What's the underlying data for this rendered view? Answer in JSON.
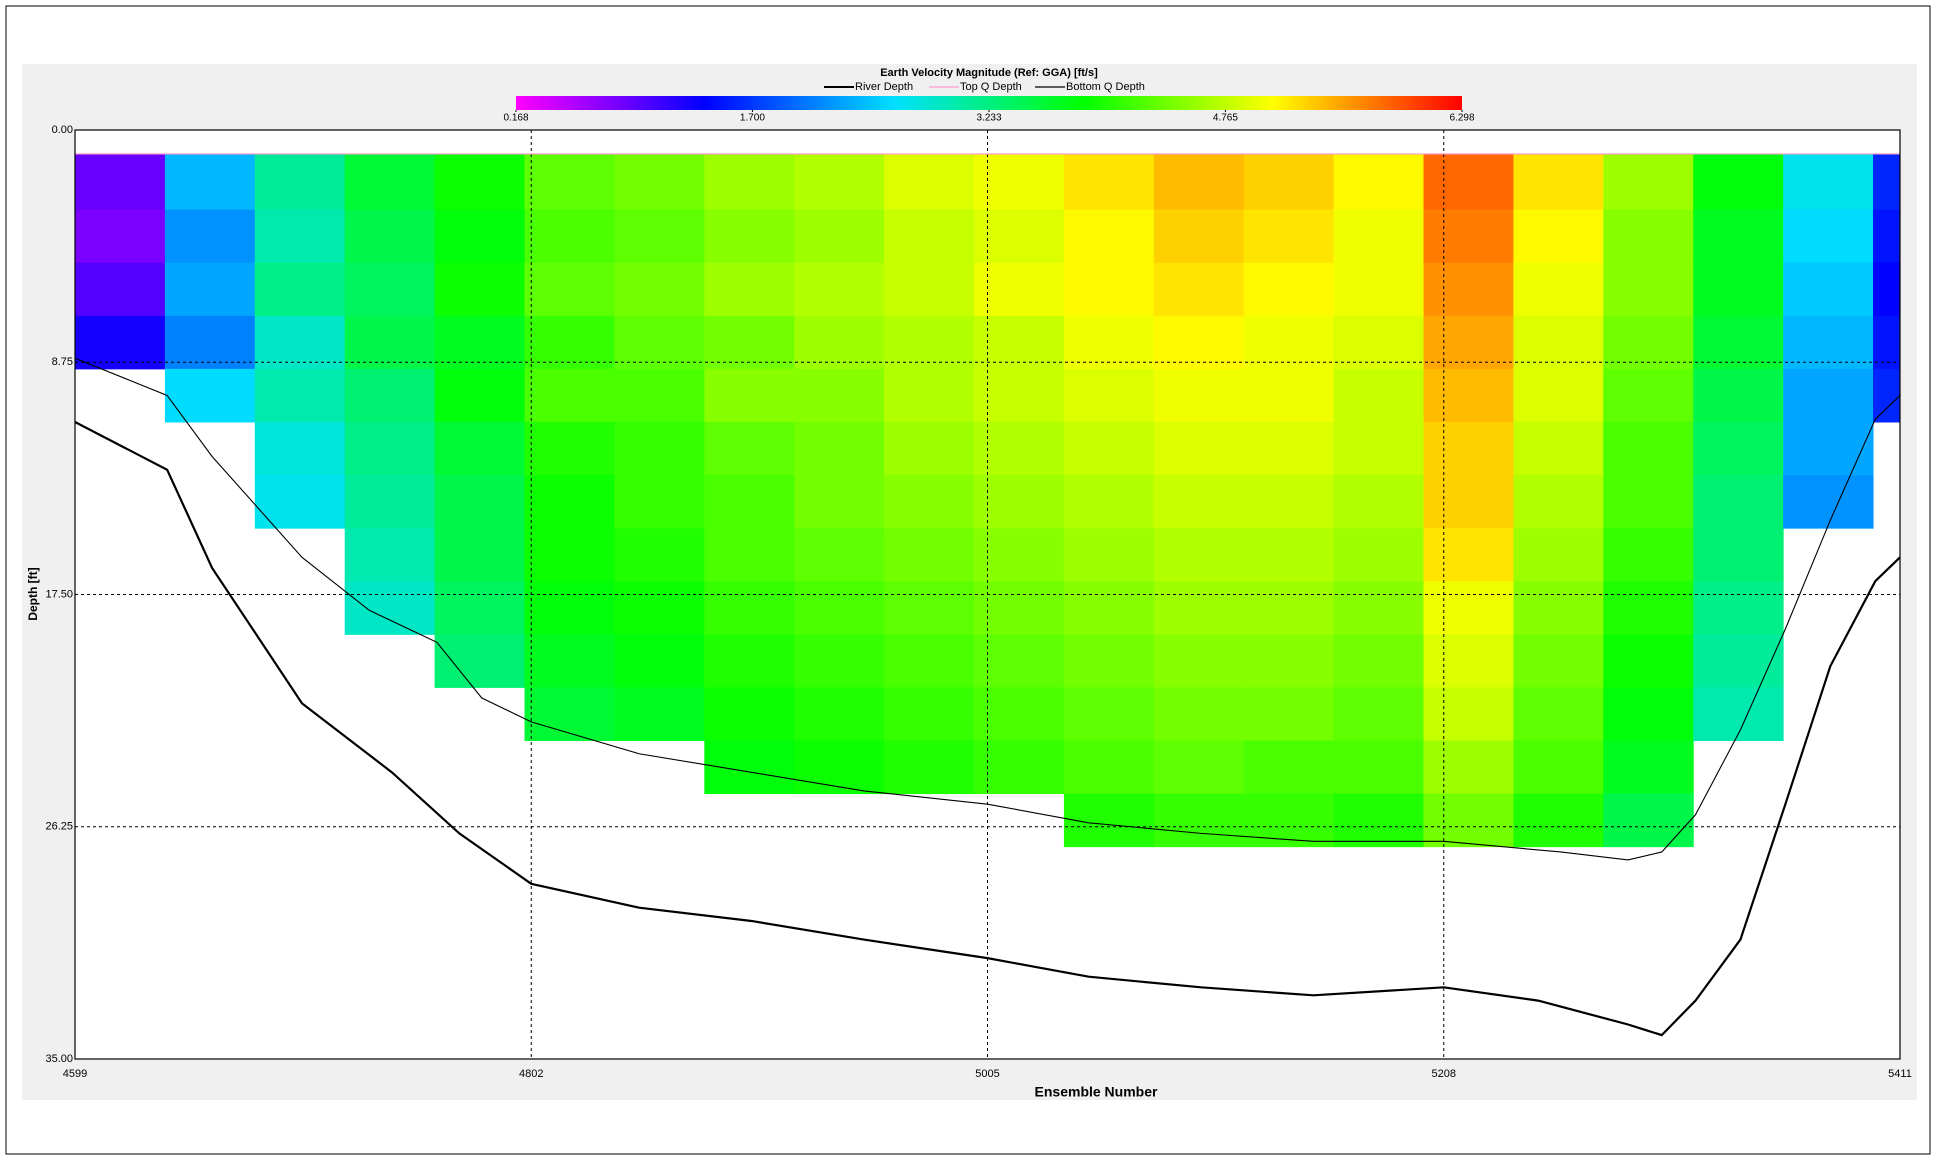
{
  "chart_data": {
    "type": "heatmap",
    "title": "Earth Velocity Magnitude (Ref: GGA) [ft/s]",
    "xlabel": "Ensemble Number",
    "ylabel": "Depth [ft]",
    "xlim": [
      4599,
      5411
    ],
    "xticks": [
      4599,
      4802,
      5005,
      5208,
      5411
    ],
    "ylim": [
      0,
      35
    ],
    "y_inverted": true,
    "yticks": [
      {
        "value": 0,
        "label": "0.00"
      },
      8.75,
      {
        "value": 17.5,
        "label": "17.50"
      },
      26.25,
      {
        "value": 35,
        "label": "35.00"
      }
    ],
    "grid": true,
    "legend": "top",
    "clim": [
      0.168,
      6.298
    ],
    "colorbar_ticks": [
      0.168,
      {
        "value": 1.7,
        "label": "1.700"
      },
      3.233,
      4.765,
      6.298
    ],
    "colormap": [
      "#ff00ff",
      "#0000ff",
      "#00e0ff",
      "#00ff00",
      "#ffff00",
      "#ff0000"
    ],
    "cells": {
      "x": [
        4599,
        4639,
        4679,
        4719,
        4759,
        4799,
        4839,
        4879,
        4919,
        4959,
        4999,
        5039,
        5079,
        5119,
        5159,
        5199,
        5239,
        5279,
        5319,
        5359,
        5399,
        5411
      ],
      "depth": [
        0.9,
        3,
        5,
        7,
        9,
        11,
        13,
        15,
        17,
        19,
        21,
        23,
        25,
        27
      ],
      "values": [
        [
          0.9,
          0.8,
          1.0,
          1.3,
          null,
          null,
          null,
          null,
          null,
          null,
          null,
          null,
          null
        ],
        [
          2.4,
          2.2,
          2.3,
          2.1,
          2.6,
          null,
          null,
          null,
          null,
          null,
          null,
          null,
          null
        ],
        [
          3.1,
          3.0,
          3.2,
          2.9,
          3.0,
          2.8,
          2.7,
          null,
          null,
          null,
          null,
          null,
          null
        ],
        [
          3.6,
          3.5,
          3.4,
          3.5,
          3.3,
          3.2,
          3.1,
          3.0,
          2.9,
          null,
          null,
          null,
          null
        ],
        [
          3.9,
          3.8,
          3.9,
          3.7,
          3.8,
          3.6,
          3.5,
          3.5,
          3.4,
          3.3,
          null,
          null,
          null
        ],
        [
          4.3,
          4.2,
          4.3,
          4.1,
          4.2,
          4.0,
          3.9,
          3.9,
          3.8,
          3.7,
          3.6,
          null,
          null
        ],
        [
          4.4,
          4.3,
          4.4,
          4.3,
          4.2,
          4.1,
          4.1,
          4.0,
          3.9,
          3.8,
          3.7,
          null,
          null
        ],
        [
          4.6,
          4.5,
          4.6,
          4.4,
          4.5,
          4.3,
          4.2,
          4.2,
          4.1,
          4.0,
          3.9,
          3.8,
          null
        ],
        [
          4.7,
          4.6,
          4.7,
          4.6,
          4.5,
          4.4,
          4.4,
          4.3,
          4.2,
          4.1,
          4.0,
          3.9,
          null
        ],
        [
          4.9,
          4.8,
          4.8,
          4.7,
          4.7,
          4.6,
          4.5,
          4.4,
          4.3,
          4.2,
          4.1,
          4.0,
          null
        ],
        [
          5.0,
          4.9,
          5.0,
          4.8,
          4.8,
          4.7,
          4.6,
          4.5,
          4.4,
          4.3,
          4.2,
          4.1,
          null
        ],
        [
          5.2,
          5.1,
          5.1,
          5.0,
          4.9,
          4.8,
          4.7,
          4.6,
          4.5,
          4.4,
          4.3,
          4.2,
          4.0
        ],
        [
          5.4,
          5.3,
          5.2,
          5.1,
          5.0,
          4.9,
          4.8,
          4.7,
          4.6,
          4.5,
          4.4,
          4.3,
          4.1
        ],
        [
          5.3,
          5.2,
          5.1,
          5.0,
          5.0,
          4.9,
          4.8,
          4.7,
          4.6,
          4.5,
          4.4,
          4.2,
          4.1
        ],
        [
          5.1,
          5.0,
          5.0,
          4.9,
          4.8,
          4.8,
          4.7,
          4.6,
          4.5,
          4.4,
          4.3,
          4.2,
          4.0
        ],
        [
          5.8,
          5.7,
          5.6,
          5.5,
          5.4,
          5.3,
          5.3,
          5.2,
          5.0,
          4.9,
          4.8,
          4.6,
          4.4
        ],
        [
          5.2,
          5.1,
          5.0,
          4.9,
          4.9,
          4.8,
          4.7,
          4.6,
          4.5,
          4.4,
          4.3,
          4.2,
          4.0
        ],
        [
          4.6,
          4.5,
          4.5,
          4.4,
          4.3,
          4.2,
          4.2,
          4.1,
          4.0,
          3.9,
          3.8,
          3.7,
          3.5
        ],
        [
          3.8,
          3.7,
          3.7,
          3.6,
          3.5,
          3.4,
          3.3,
          3.3,
          3.2,
          3.1,
          3.0,
          null,
          null
        ],
        [
          2.7,
          2.6,
          2.5,
          2.4,
          2.3,
          2.3,
          2.2,
          null,
          null,
          null,
          null,
          null,
          null
        ],
        [
          1.6,
          1.5,
          1.4,
          1.5,
          1.6,
          null,
          null,
          null,
          null,
          null,
          null,
          null,
          null
        ]
      ]
    },
    "series": [
      {
        "name": "River Depth",
        "color": "#000000",
        "x": [
          4599,
          4640,
          4660,
          4700,
          4740,
          4770,
          4802,
          4850,
          4900,
          4950,
          5005,
          5050,
          5100,
          5150,
          5208,
          5250,
          5290,
          5305,
          5320,
          5340,
          5360,
          5380,
          5400,
          5411
        ],
        "values": [
          11.0,
          12.8,
          16.5,
          21.6,
          24.2,
          26.5,
          28.4,
          29.3,
          29.8,
          30.5,
          31.2,
          31.9,
          32.3,
          32.6,
          32.3,
          32.8,
          33.7,
          34.1,
          32.8,
          30.5,
          25.4,
          20.2,
          17.0,
          16.1
        ]
      },
      {
        "name": "Top Q Depth",
        "color": "#ff99cc",
        "x": [
          4599,
          5411
        ],
        "values": [
          0.9,
          0.9
        ]
      },
      {
        "name": "Bottom Q Depth",
        "color": "#000000",
        "x": [
          4599,
          4640,
          4660,
          4700,
          4730,
          4760,
          4780,
          4802,
          4850,
          4900,
          4950,
          5005,
          5050,
          5100,
          5150,
          5208,
          5260,
          5290,
          5305,
          5320,
          5340,
          5360,
          5380,
          5400,
          5411
        ],
        "values": [
          8.6,
          10.0,
          12.3,
          16.1,
          18.1,
          19.3,
          21.4,
          22.3,
          23.5,
          24.2,
          24.9,
          25.4,
          26.1,
          26.5,
          26.8,
          26.8,
          27.2,
          27.5,
          27.2,
          25.8,
          22.6,
          18.8,
          14.7,
          10.9,
          10.0
        ]
      }
    ]
  }
}
